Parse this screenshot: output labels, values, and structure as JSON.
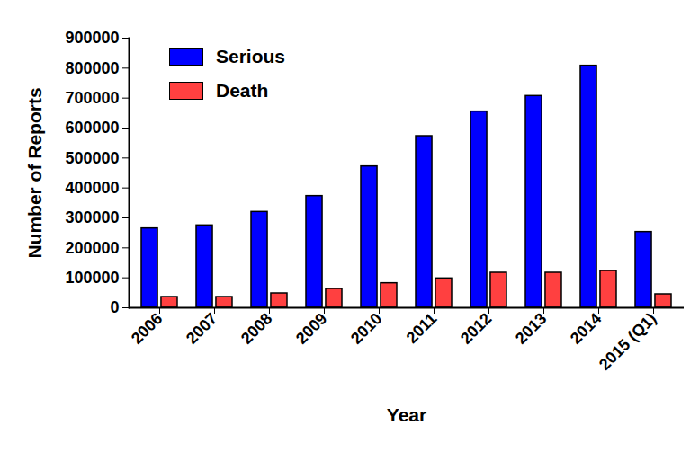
{
  "chart_data": {
    "type": "bar",
    "x_label": "Year",
    "y_label": "Number of Reports",
    "categories": [
      "2006",
      "2007",
      "2008",
      "2009",
      "2010",
      "2011",
      "2012",
      "2013",
      "2014",
      "2015 (Q1)"
    ],
    "series": [
      {
        "name": "Serious",
        "color": "#0000ff",
        "values": [
          265000,
          275000,
          320000,
          373000,
          472000,
          573000,
          655000,
          707000,
          808000,
          253000
        ]
      },
      {
        "name": "Death",
        "color": "#ff4040",
        "values": [
          36000,
          36000,
          48000,
          63000,
          82000,
          98000,
          117000,
          117000,
          123000,
          45000
        ]
      }
    ],
    "ylim": [
      0,
      900000
    ],
    "yticks": [
      0,
      100000,
      200000,
      300000,
      400000,
      500000,
      600000,
      700000,
      800000,
      900000
    ],
    "grid": false,
    "legend": "top-left"
  }
}
